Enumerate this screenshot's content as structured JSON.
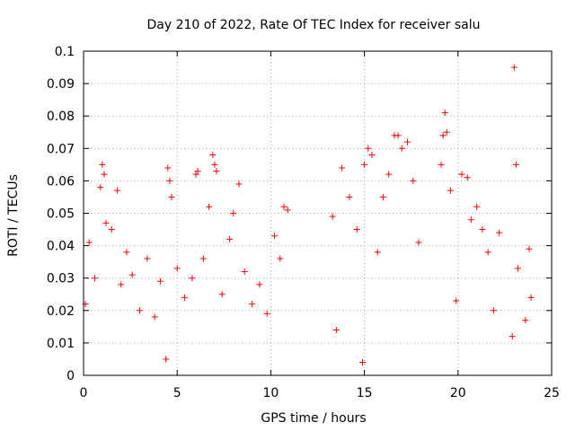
{
  "chart_data": {
    "type": "scatter",
    "title": "Day 210 of 2022, Rate Of TEC Index for receiver salu",
    "xlabel": "GPS time / hours",
    "ylabel": "ROTI / TECUs",
    "xlim": [
      0,
      25
    ],
    "ylim": [
      0,
      0.1
    ],
    "xticks": [
      "0",
      "5",
      "10",
      "15",
      "20",
      "25"
    ],
    "yticks": [
      "0",
      "0.01",
      "0.02",
      "0.03",
      "0.04",
      "0.05",
      "0.06",
      "0.07",
      "0.08",
      "0.09",
      "0.1"
    ],
    "grid": true,
    "marker": "+",
    "color": "#ff0000",
    "series": [
      {
        "x": [
          0.1,
          0.3,
          0.6,
          0.9,
          1.0,
          1.1,
          1.2,
          1.5,
          1.8,
          2.0,
          2.3,
          2.6,
          3.0,
          3.4,
          3.8,
          4.1,
          4.4,
          4.5,
          4.6,
          4.7,
          5.0,
          5.4,
          5.8,
          6.0,
          6.1,
          6.4,
          6.7,
          6.9,
          7.0,
          7.1,
          7.4,
          7.8,
          8.0,
          8.3,
          8.6,
          9.0,
          9.4,
          9.8,
          10.2,
          10.5,
          10.7,
          10.9,
          13.3,
          13.5,
          13.8,
          14.2,
          14.6,
          14.9,
          15.0,
          15.2,
          15.4,
          15.7,
          16.0,
          16.3,
          16.6,
          16.8,
          17.0,
          17.3,
          17.6,
          17.9,
          19.1,
          19.2,
          19.3,
          19.4,
          19.6,
          19.9,
          20.2,
          20.5,
          20.7,
          21.0,
          21.3,
          21.6,
          21.9,
          22.2,
          22.9,
          23.0,
          23.1,
          23.2,
          23.6,
          23.8,
          23.9
        ],
        "y": [
          0.022,
          0.041,
          0.03,
          0.058,
          0.065,
          0.062,
          0.047,
          0.045,
          0.057,
          0.028,
          0.038,
          0.031,
          0.02,
          0.036,
          0.018,
          0.029,
          0.005,
          0.064,
          0.06,
          0.055,
          0.033,
          0.024,
          0.03,
          0.062,
          0.063,
          0.036,
          0.052,
          0.068,
          0.065,
          0.063,
          0.025,
          0.042,
          0.05,
          0.059,
          0.032,
          0.022,
          0.028,
          0.019,
          0.043,
          0.036,
          0.052,
          0.051,
          0.049,
          0.014,
          0.064,
          0.055,
          0.045,
          0.004,
          0.065,
          0.07,
          0.068,
          0.038,
          0.055,
          0.062,
          0.074,
          0.074,
          0.07,
          0.072,
          0.06,
          0.041,
          0.065,
          0.074,
          0.081,
          0.075,
          0.057,
          0.023,
          0.062,
          0.061,
          0.048,
          0.052,
          0.045,
          0.038,
          0.02,
          0.044,
          0.012,
          0.095,
          0.065,
          0.033,
          0.017,
          0.039,
          0.024
        ]
      }
    ]
  }
}
